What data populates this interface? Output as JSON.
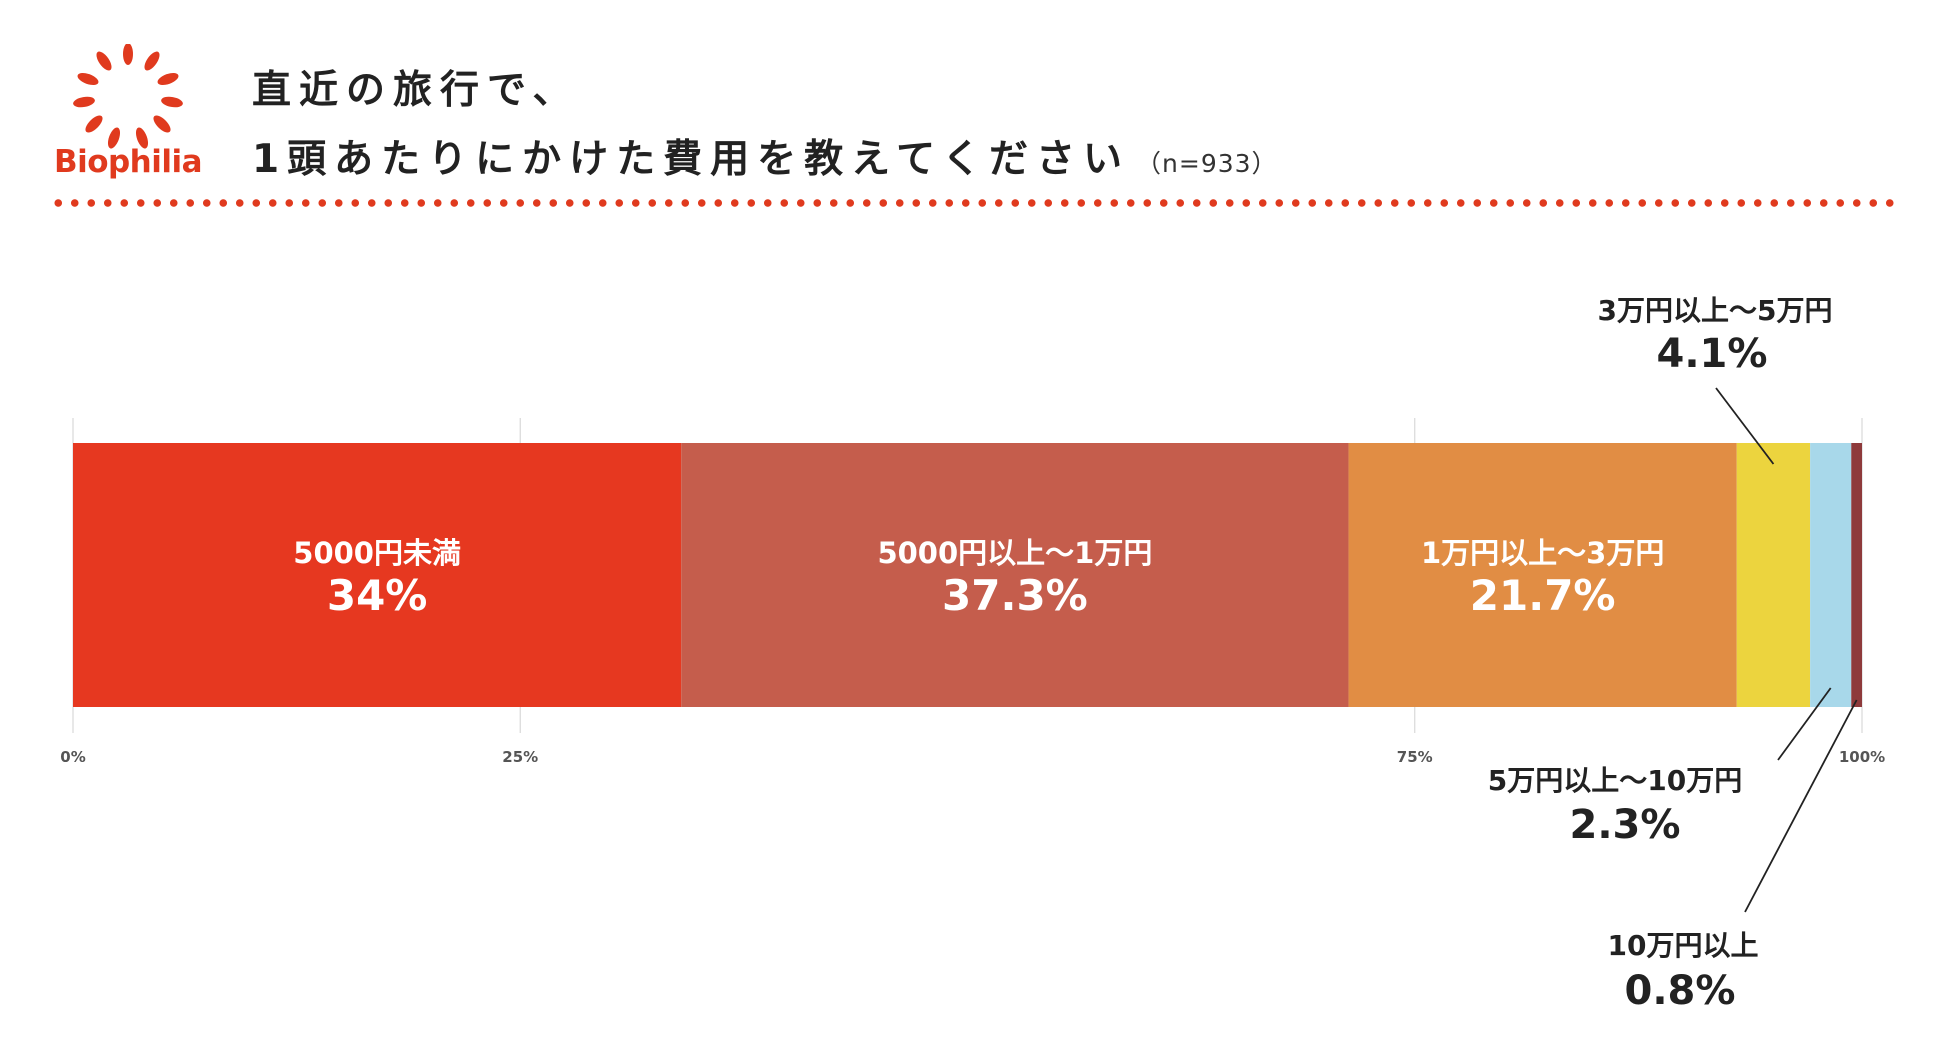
{
  "brand": {
    "name": "Biophilia",
    "color": "#e03a1e"
  },
  "header": {
    "title_line1": "直近の旅行で、",
    "title_line2": "1頭あたりにかけた費用を教えてください",
    "sample_note": "（n=933）"
  },
  "chart_data": {
    "type": "bar",
    "orientation": "horizontal-stacked-100",
    "xlim": [
      0,
      100
    ],
    "ticks": [
      {
        "value": 0,
        "label": "0%"
      },
      {
        "value": 25,
        "label": "25%"
      },
      {
        "value": 75,
        "label": "75%"
      },
      {
        "value": 100,
        "label": "100%"
      }
    ],
    "categories": [
      "5000円未満",
      "5000円以上～1万円",
      "1万円以上～3万円",
      "3万円以上～5万円",
      "5万円以上～10万円",
      "10万円以上"
    ],
    "values": [
      34,
      37.3,
      21.7,
      4.1,
      2.3,
      0.8
    ],
    "value_labels": [
      "34%",
      "37.3%",
      "21.7%",
      "4.1%",
      "2.3%",
      "0.8%"
    ],
    "colors": [
      "#e63820",
      "#c55d4c",
      "#e18d44",
      "#ecd43e",
      "#a8d8ea",
      "#8e3a3b"
    ],
    "label_placement": [
      "inside",
      "inside",
      "inside",
      "callout-top",
      "callout-bottom",
      "callout-bottom"
    ]
  }
}
